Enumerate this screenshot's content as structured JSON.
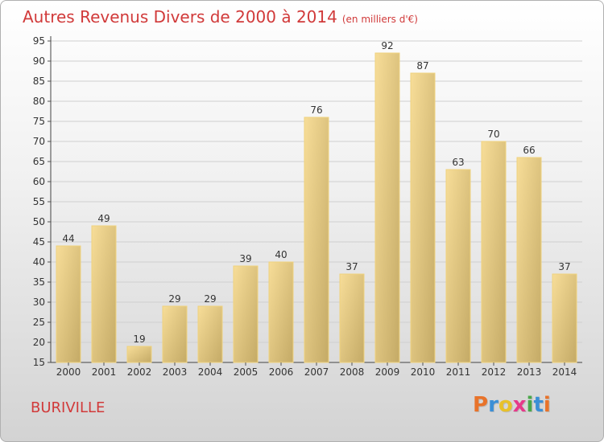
{
  "chart_data": {
    "type": "bar",
    "title": "Autres Revenus Divers de 2000 à 2014",
    "unit_note": "(en milliers d'€)",
    "categories": [
      "2000",
      "2001",
      "2002",
      "2003",
      "2004",
      "2005",
      "2006",
      "2007",
      "2008",
      "2009",
      "2010",
      "2011",
      "2012",
      "2013",
      "2014"
    ],
    "values": [
      44,
      49,
      19,
      29,
      29,
      39,
      40,
      76,
      37,
      92,
      87,
      63,
      70,
      66,
      37
    ],
    "ylim": [
      15,
      95
    ],
    "yticks": [
      15,
      20,
      25,
      30,
      35,
      40,
      45,
      50,
      55,
      60,
      65,
      70,
      75,
      80,
      85,
      90,
      95
    ],
    "grid": true,
    "xlabel": "",
    "ylabel": ""
  },
  "footer": {
    "commune": "BURIVILLE",
    "logo_letters": [
      "P",
      "r",
      "o",
      "x",
      "i",
      "t",
      "i"
    ],
    "logo_colors": [
      "#e8732a",
      "#3b8fd6",
      "#e8c12a",
      "#e63a8a",
      "#4aa84a",
      "#3b8fd6",
      "#e8732a"
    ]
  },
  "colors": {
    "title": "#d13a3a",
    "bar_light": "#f7dd98",
    "bar_dark": "#c4aa66",
    "grid": "#cfcfcf"
  }
}
